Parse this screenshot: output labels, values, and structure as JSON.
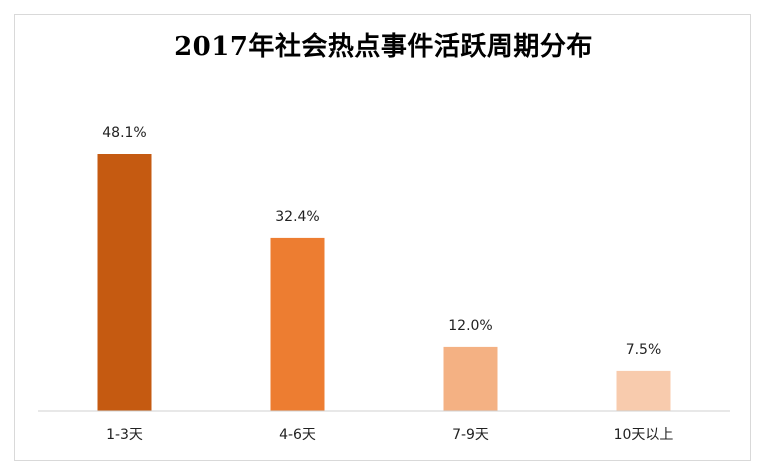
{
  "chart_data": {
    "type": "bar",
    "title": "2017年社会热点事件活跃周期分布",
    "categories": [
      "1-3天",
      "4-6天",
      "7-9天",
      "10天以上"
    ],
    "values": [
      48.1,
      32.4,
      12.0,
      7.5
    ],
    "value_labels": [
      "48.1%",
      "32.4%",
      "12.0%",
      "7.5%"
    ],
    "unit": "%",
    "colors": [
      "#c55a11",
      "#ed7d31",
      "#f4b183",
      "#f8cbad"
    ],
    "ylim": [
      0,
      48.1
    ],
    "grid": false,
    "legend": "none"
  }
}
